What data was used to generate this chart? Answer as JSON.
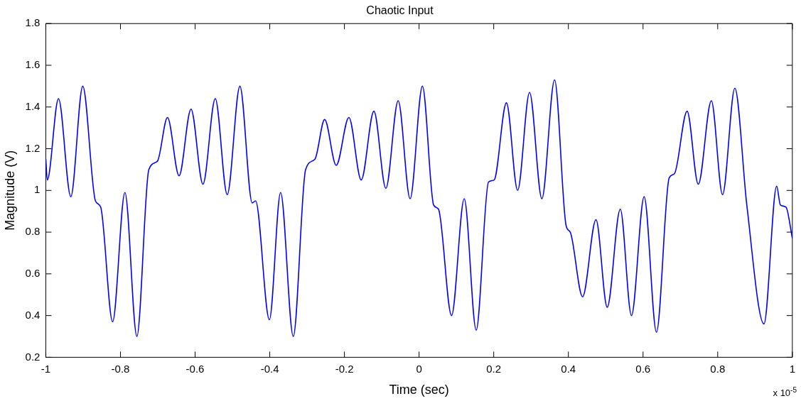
{
  "chart_data": {
    "type": "line",
    "title": "Chaotic Input",
    "xlabel": "Time (sec)",
    "ylabel": "Magnitude (V)",
    "annotations": [
      "x 10$^{-5}$"
    ],
    "xlim": [
      -1,
      1
    ],
    "xticks": [
      -1,
      -0.8,
      -0.6,
      -0.4,
      -0.2,
      0,
      0.2,
      0.4,
      0.6,
      0.8,
      1
    ],
    "ylim": [
      0.2,
      1.8
    ],
    "yticks": [
      0.2,
      0.4,
      0.6,
      0.8,
      1,
      1.2,
      1.4,
      1.6,
      1.8
    ],
    "grid": false,
    "legend": false,
    "marker": "none",
    "line_style": "solid",
    "series": [
      {
        "color": "#0000ff",
        "x": [
          -1,
          -0.996,
          -0.966,
          -0.933,
          -0.901,
          -0.867,
          -0.853,
          -0.821,
          -0.788,
          -0.756,
          -0.724,
          -0.701,
          -0.674,
          -0.643,
          -0.611,
          -0.579,
          -0.546,
          -0.514,
          -0.48,
          -0.447,
          -0.438,
          -0.401,
          -0.371,
          -0.337,
          -0.304,
          -0.279,
          -0.253,
          -0.222,
          -0.188,
          -0.155,
          -0.121,
          -0.089,
          -0.056,
          -0.024,
          0.009,
          0.039,
          0.052,
          0.087,
          0.121,
          0.153,
          0.186,
          0.201,
          0.234,
          0.264,
          0.296,
          0.329,
          0.363,
          0.394,
          0.405,
          0.438,
          0.474,
          0.504,
          0.539,
          0.569,
          0.603,
          0.636,
          0.67,
          0.684,
          0.718,
          0.748,
          0.783,
          0.813,
          0.846,
          0.878,
          0.924,
          0.958,
          0.968,
          0.983,
          1
        ],
        "values": [
          1.15,
          1.05,
          1.44,
          0.97,
          1.5,
          0.95,
          0.92,
          0.37,
          0.99,
          0.3,
          1.1,
          1.14,
          1.35,
          1.07,
          1.39,
          1.03,
          1.44,
          0.98,
          1.5,
          0.94,
          0.95,
          0.38,
          0.99,
          0.3,
          1.1,
          1.15,
          1.34,
          1.12,
          1.35,
          1.05,
          1.38,
          1.01,
          1.43,
          0.96,
          1.5,
          0.93,
          0.91,
          0.4,
          0.96,
          0.33,
          1.04,
          1.05,
          1.42,
          1.0,
          1.47,
          0.96,
          1.53,
          0.83,
          0.8,
          0.49,
          0.86,
          0.44,
          0.91,
          0.4,
          0.97,
          0.32,
          1.06,
          1.08,
          1.38,
          1.03,
          1.43,
          0.98,
          1.49,
          0.93,
          0.36,
          1.02,
          0.93,
          0.92,
          0.77
        ]
      }
    ]
  }
}
